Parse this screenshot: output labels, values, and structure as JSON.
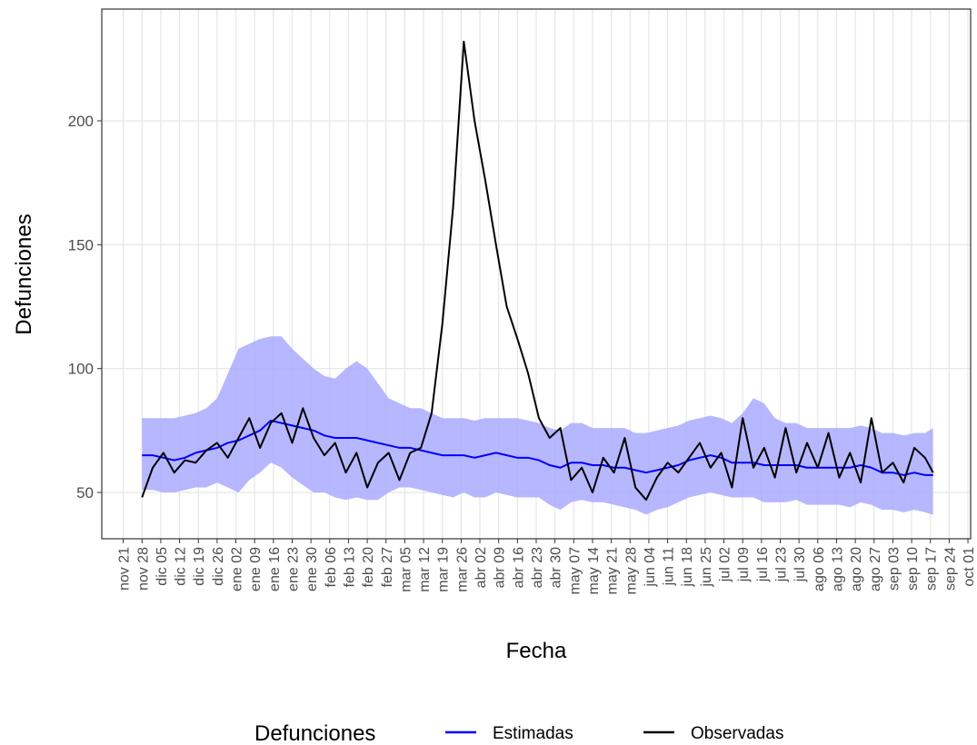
{
  "chart_data": {
    "type": "line",
    "x_label": "Fecha",
    "y_label": "Defunciones",
    "legend_title": "Defunciones",
    "x": [
      "11-28",
      "12-02",
      "12-06",
      "12-10",
      "12-14",
      "12-18",
      "12-22",
      "12-26",
      "12-30",
      "01-03",
      "01-07",
      "01-11",
      "01-15",
      "01-19",
      "01-23",
      "01-27",
      "01-31",
      "02-04",
      "02-08",
      "02-12",
      "02-16",
      "02-20",
      "02-24",
      "02-28",
      "03-03",
      "03-07",
      "03-11",
      "03-15",
      "03-19",
      "03-23",
      "03-27",
      "03-31",
      "04-04",
      "04-08",
      "04-12",
      "04-16",
      "04-20",
      "04-24",
      "04-28",
      "05-02",
      "05-06",
      "05-10",
      "05-14",
      "05-18",
      "05-22",
      "05-26",
      "05-30",
      "06-03",
      "06-07",
      "06-11",
      "06-15",
      "06-19",
      "06-23",
      "06-27",
      "07-01",
      "07-05",
      "07-09",
      "07-13",
      "07-17",
      "07-21",
      "07-25",
      "07-29",
      "08-02",
      "08-06",
      "08-10",
      "08-14",
      "08-18",
      "08-22",
      "08-26",
      "08-30",
      "09-03",
      "09-07",
      "09-11",
      "09-15",
      "09-18"
    ],
    "ribbon": {
      "color": "#aaaaff",
      "upper": [
        80,
        80,
        80,
        80,
        81,
        82,
        84,
        88,
        98,
        108,
        110,
        112,
        113,
        113,
        108,
        104,
        100,
        97,
        96,
        100,
        103,
        100,
        94,
        88,
        86,
        84,
        84,
        82,
        80,
        80,
        80,
        79,
        80,
        80,
        80,
        80,
        79,
        78,
        76,
        75,
        78,
        78,
        76,
        76,
        76,
        76,
        74,
        74,
        75,
        76,
        77,
        79,
        80,
        81,
        80,
        78,
        82,
        88,
        86,
        80,
        78,
        78,
        76,
        76,
        76,
        76,
        76,
        77,
        76,
        74,
        74,
        73,
        74,
        74,
        76
      ],
      "lower": [
        51,
        51,
        50,
        50,
        51,
        52,
        52,
        54,
        52,
        50,
        55,
        58,
        62,
        60,
        56,
        53,
        50,
        50,
        48,
        47,
        48,
        47,
        47,
        50,
        52,
        52,
        51,
        50,
        49,
        48,
        50,
        48,
        48,
        50,
        49,
        48,
        48,
        48,
        45,
        43,
        46,
        47,
        46,
        46,
        45,
        44,
        43,
        41,
        43,
        44,
        46,
        48,
        49,
        50,
        49,
        48,
        48,
        48,
        46,
        46,
        46,
        47,
        45,
        45,
        45,
        45,
        44,
        46,
        45,
        43,
        43,
        42,
        43,
        42,
        41
      ]
    },
    "series": [
      {
        "name": "Estimadas",
        "color": "#0000ff",
        "values": [
          65,
          65,
          64,
          63,
          64,
          66,
          67,
          68,
          70,
          71,
          73,
          75,
          79,
          78,
          77,
          76,
          75,
          73,
          72,
          72,
          72,
          71,
          70,
          69,
          68,
          68,
          67,
          66,
          65,
          65,
          65,
          64,
          65,
          66,
          65,
          64,
          64,
          63,
          61,
          60,
          62,
          62,
          61,
          61,
          60,
          60,
          59,
          58,
          59,
          60,
          61,
          63,
          64,
          65,
          64,
          62,
          62,
          62,
          61,
          61,
          61,
          61,
          60,
          60,
          60,
          60,
          60,
          61,
          60,
          58,
          58,
          57,
          58,
          57,
          57
        ]
      },
      {
        "name": "Observadas",
        "color": "#000000",
        "values": [
          48,
          60,
          66,
          58,
          63,
          62,
          67,
          70,
          64,
          72,
          80,
          68,
          78,
          82,
          70,
          84,
          72,
          65,
          70,
          58,
          66,
          52,
          62,
          66,
          55,
          66,
          68,
          82,
          118,
          165,
          232,
          200,
          176,
          150,
          125,
          112,
          98,
          80,
          72,
          76,
          55,
          60,
          50,
          64,
          58,
          72,
          52,
          47,
          56,
          62,
          58,
          64,
          70,
          60,
          66,
          52,
          80,
          60,
          68,
          56,
          76,
          58,
          70,
          60,
          74,
          56,
          66,
          54,
          80,
          58,
          62,
          54,
          68,
          64,
          58
        ]
      }
    ],
    "xlim": [
      "11-13",
      "10-02"
    ],
    "xticks": [
      {
        "value": "11-21",
        "label": "nov 21"
      },
      {
        "value": "11-28",
        "label": "nov 28"
      },
      {
        "value": "12-05",
        "label": "dic 05"
      },
      {
        "value": "12-12",
        "label": "dic 12"
      },
      {
        "value": "12-19",
        "label": "dic 19"
      },
      {
        "value": "12-26",
        "label": "dic 26"
      },
      {
        "value": "01-02",
        "label": "ene 02"
      },
      {
        "value": "01-09",
        "label": "ene 09"
      },
      {
        "value": "01-16",
        "label": "ene 16"
      },
      {
        "value": "01-23",
        "label": "ene 23"
      },
      {
        "value": "01-30",
        "label": "ene 30"
      },
      {
        "value": "02-06",
        "label": "feb 06"
      },
      {
        "value": "02-13",
        "label": "feb 13"
      },
      {
        "value": "02-20",
        "label": "feb 20"
      },
      {
        "value": "02-27",
        "label": "feb 27"
      },
      {
        "value": "03-05",
        "label": "mar 05"
      },
      {
        "value": "03-12",
        "label": "mar 12"
      },
      {
        "value": "03-19",
        "label": "mar 19"
      },
      {
        "value": "03-26",
        "label": "mar 26"
      },
      {
        "value": "04-02",
        "label": "abr 02"
      },
      {
        "value": "04-09",
        "label": "abr 09"
      },
      {
        "value": "04-16",
        "label": "abr 16"
      },
      {
        "value": "04-23",
        "label": "abr 23"
      },
      {
        "value": "04-30",
        "label": "abr 30"
      },
      {
        "value": "05-07",
        "label": "may 07"
      },
      {
        "value": "05-14",
        "label": "may 14"
      },
      {
        "value": "05-21",
        "label": "may 21"
      },
      {
        "value": "05-28",
        "label": "may 28"
      },
      {
        "value": "06-04",
        "label": "jun 04"
      },
      {
        "value": "06-11",
        "label": "jun 11"
      },
      {
        "value": "06-18",
        "label": "jun 18"
      },
      {
        "value": "06-25",
        "label": "jun 25"
      },
      {
        "value": "07-02",
        "label": "jul 02"
      },
      {
        "value": "07-09",
        "label": "jul 09"
      },
      {
        "value": "07-16",
        "label": "jul 16"
      },
      {
        "value": "07-23",
        "label": "jul 23"
      },
      {
        "value": "07-30",
        "label": "jul 30"
      },
      {
        "value": "08-06",
        "label": "ago 06"
      },
      {
        "value": "08-13",
        "label": "ago 13"
      },
      {
        "value": "08-20",
        "label": "ago 20"
      },
      {
        "value": "08-27",
        "label": "ago 27"
      },
      {
        "value": "09-03",
        "label": "sep 03"
      },
      {
        "value": "09-10",
        "label": "sep 10"
      },
      {
        "value": "09-17",
        "label": "sep 17"
      },
      {
        "value": "09-24",
        "label": "sep 24"
      },
      {
        "value": "10-01",
        "label": "oct 01"
      }
    ],
    "ylim": [
      31.3,
      245.1
    ],
    "yticks": [
      50,
      100,
      150,
      200
    ],
    "grid": true
  }
}
